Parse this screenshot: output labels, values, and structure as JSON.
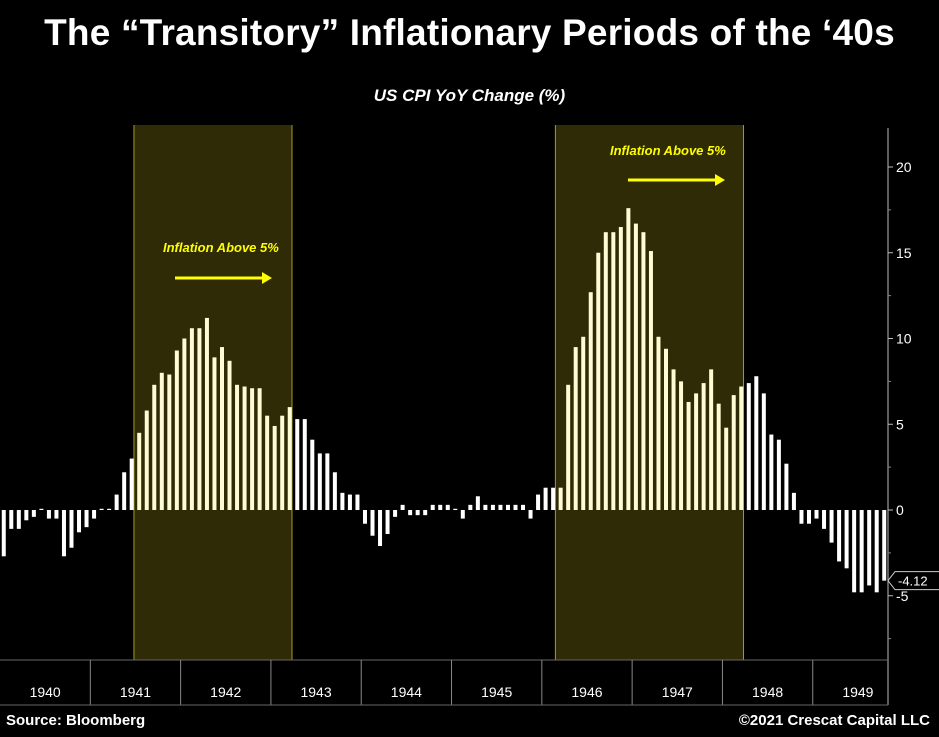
{
  "title": "The “Transitory” Inflationary Periods of the ‘40s",
  "subtitle": "US CPI YoY Change (%)",
  "source": "Source: Bloomberg",
  "copyright": "©2021 Crescat Capital LLC",
  "colors": {
    "background": "#000000",
    "bar_normal": "#ffffff",
    "bar_highlight": "#fdfcd2",
    "band_fill": "#2e2b06",
    "band_border": "#a69a22",
    "annotation": "#ffff00"
  },
  "chart_data": {
    "type": "bar",
    "title": "US CPI YoY Change (%)",
    "xlabel": "",
    "ylabel": "",
    "ylim": [
      -8.5,
      22
    ],
    "yticks": [
      "-5",
      "0",
      "5",
      "10",
      "15",
      "20"
    ],
    "x_year_labels": [
      "1940",
      "1941",
      "1942",
      "1943",
      "1944",
      "1945",
      "1946",
      "1947",
      "1948",
      "1949"
    ],
    "grid": false,
    "last_value_label": "-4.12",
    "start_month": "1940-01",
    "frequency": "monthly",
    "values": [
      -2.7,
      -1.1,
      -1.1,
      -0.6,
      -0.4,
      0.0,
      -0.5,
      -0.5,
      -2.7,
      -2.2,
      -1.3,
      -1.0,
      -0.5,
      0.0,
      0.0,
      0.9,
      2.2,
      3.0,
      4.5,
      5.8,
      7.3,
      8.0,
      7.9,
      9.3,
      10.0,
      10.6,
      10.6,
      11.2,
      8.9,
      9.5,
      8.7,
      7.3,
      7.2,
      7.1,
      7.1,
      5.5,
      4.9,
      5.5,
      6.0,
      5.3,
      5.3,
      4.1,
      3.3,
      3.3,
      2.2,
      1.0,
      0.9,
      0.9,
      -0.8,
      -1.5,
      -2.1,
      -1.4,
      -0.4,
      0.3,
      -0.3,
      -0.3,
      -0.3,
      0.3,
      0.3,
      0.3,
      0.0,
      -0.5,
      0.3,
      0.8,
      0.3,
      0.3,
      0.3,
      0.3,
      0.3,
      0.3,
      -0.5,
      0.9,
      1.3,
      1.3,
      1.3,
      7.3,
      9.5,
      10.1,
      12.7,
      15.0,
      16.2,
      16.2,
      16.5,
      17.6,
      16.7,
      16.2,
      15.1,
      10.1,
      9.4,
      8.2,
      7.5,
      6.3,
      6.8,
      7.4,
      8.2,
      6.2,
      4.8,
      6.7,
      7.2,
      7.4,
      7.8,
      6.8,
      4.4,
      4.1,
      2.7,
      1.0,
      -0.8,
      -0.8,
      -0.5,
      -1.1,
      -1.9,
      -3.0,
      -3.4,
      -4.8,
      -4.8,
      -4.4,
      -4.8,
      -4.12
    ],
    "highlight_periods": [
      {
        "label": "Inflation Above 5%",
        "start_month": "1941-07",
        "end_month": "1943-04"
      },
      {
        "label": "Inflation Above 5%",
        "start_month": "1946-03",
        "end_month": "1948-04"
      }
    ]
  }
}
